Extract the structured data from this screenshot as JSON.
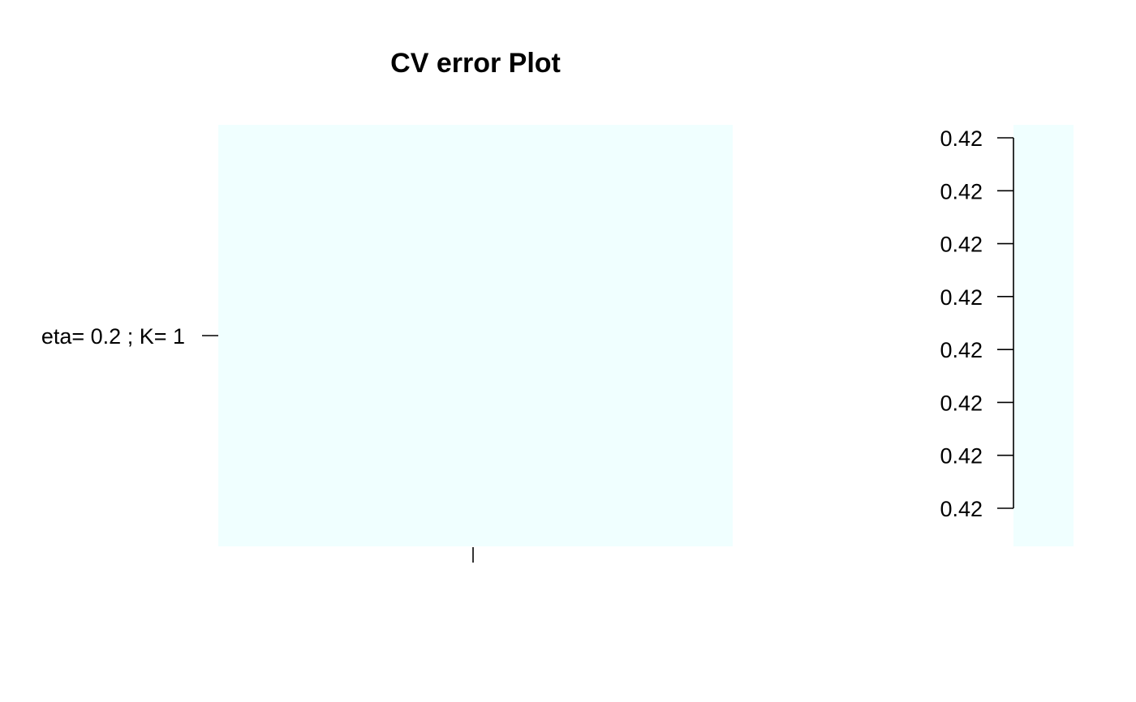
{
  "chart_data": {
    "type": "heatmap",
    "title": "CV error Plot",
    "xlabel": "",
    "ylabel": "",
    "x_categories": [
      ""
    ],
    "y_categories": [
      "eta= 0.2 ; K= 1"
    ],
    "values": [
      [
        0.42
      ]
    ],
    "cell_color": "#f0ffff",
    "colorbar": {
      "tick_labels": [
        "0.42",
        "0.42",
        "0.42",
        "0.42",
        "0.42",
        "0.42",
        "0.42",
        "0.42"
      ],
      "color": "#f0ffff",
      "placement": "right"
    },
    "grid": false,
    "legend": "none"
  }
}
